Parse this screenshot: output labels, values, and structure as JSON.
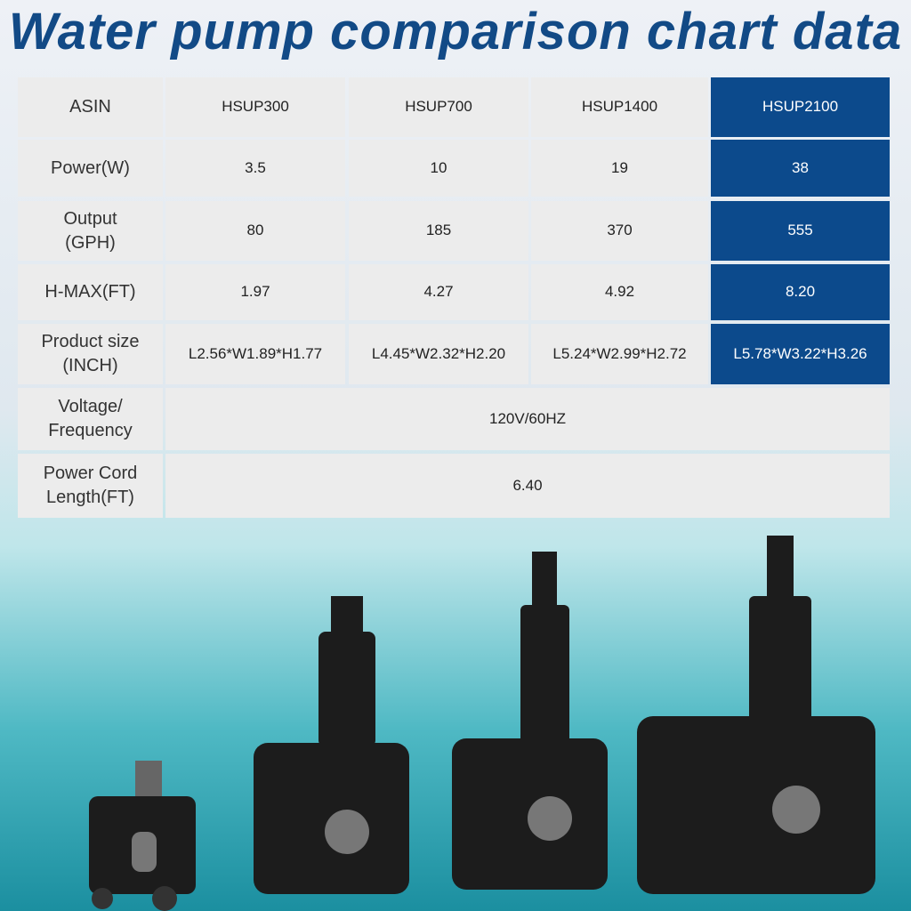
{
  "title": "Water pump comparison chart data",
  "table": {
    "header": [
      "ASIN",
      "HSUP300",
      "HSUP700",
      "HSUP1400",
      "HSUP2100"
    ],
    "rows": [
      [
        "Power(W)",
        "3.5",
        "10",
        "19",
        "38"
      ],
      [
        "Output\n(GPH)",
        "80",
        "185",
        "370",
        "555"
      ],
      [
        "H-MAX(FT)",
        "1.97",
        "4.27",
        "4.92",
        "8.20"
      ],
      [
        "Product size\n(INCH)",
        "L2.56*W1.89*H1.77",
        "L4.45*W2.32*H2.20",
        "L5.24*W2.99*H2.72",
        "L5.78*W3.22*H3.26"
      ],
      [
        "Voltage/\nFrequency",
        "120V/60HZ"
      ],
      [
        "Power Cord\nLength(FT)",
        "6.40"
      ]
    ]
  }
}
